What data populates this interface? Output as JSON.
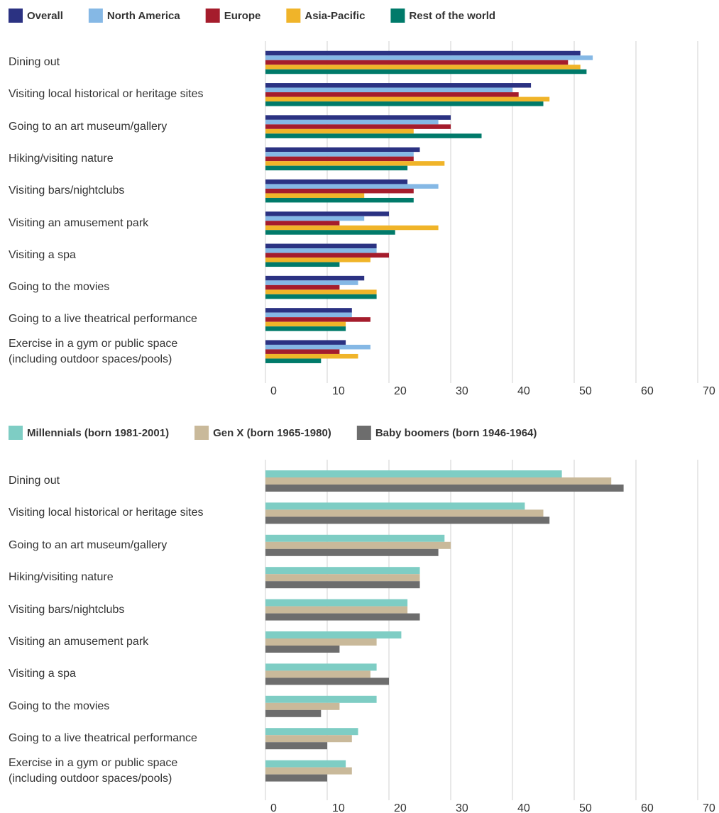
{
  "chart_data": [
    {
      "type": "bar",
      "orientation": "horizontal",
      "categories": [
        "Dining out",
        "Visiting local historical or heritage sites",
        "Going to an art museum/gallery",
        "Hiking/visiting nature",
        "Visiting bars/nightclubs",
        "Visiting an amusement park",
        "Visiting a spa",
        "Going to the movies",
        "Going to a live theatrical performance",
        "Exercise in a gym or public space\n(including outdoor spaces/pools)"
      ],
      "series": [
        {
          "name": "Overall",
          "color": "#2b3282",
          "values": [
            51,
            43,
            30,
            25,
            23,
            20,
            18,
            16,
            14,
            13
          ]
        },
        {
          "name": "North America",
          "color": "#85b8e5",
          "values": [
            53,
            40,
            28,
            24,
            28,
            16,
            18,
            15,
            14,
            17
          ]
        },
        {
          "name": "Europe",
          "color": "#a51c2c",
          "values": [
            49,
            41,
            30,
            24,
            24,
            12,
            20,
            12,
            17,
            12
          ]
        },
        {
          "name": "Asia-Pacific",
          "color": "#f0b429",
          "values": [
            51,
            46,
            24,
            29,
            16,
            28,
            17,
            18,
            13,
            15
          ]
        },
        {
          "name": "Rest of the world",
          "color": "#007a6a",
          "values": [
            52,
            45,
            35,
            23,
            24,
            21,
            12,
            18,
            13,
            9
          ]
        }
      ],
      "xlim": [
        0,
        70
      ],
      "xticks": [
        0,
        10,
        20,
        30,
        40,
        50,
        60,
        70
      ],
      "grid": true,
      "legend": "top"
    },
    {
      "type": "bar",
      "orientation": "horizontal",
      "categories": [
        "Dining out",
        "Visiting local historical or heritage sites",
        "Going to an art museum/gallery",
        "Hiking/visiting nature",
        "Visiting bars/nightclubs",
        "Visiting an amusement park",
        "Visiting a spa",
        "Going to the movies",
        "Going to a live theatrical performance",
        "Exercise in a gym or public space\n(including outdoor spaces/pools)"
      ],
      "series": [
        {
          "name": "Millennials (born 1981-2001)",
          "color": "#7ecdc4",
          "values": [
            48,
            42,
            29,
            25,
            23,
            22,
            18,
            18,
            15,
            13
          ]
        },
        {
          "name": "Gen X (born 1965-1980)",
          "color": "#c9b99a",
          "values": [
            56,
            45,
            30,
            25,
            23,
            18,
            17,
            12,
            14,
            14
          ]
        },
        {
          "name": "Baby boomers (born 1946-1964)",
          "color": "#6d6d6d",
          "values": [
            58,
            46,
            28,
            25,
            25,
            12,
            20,
            9,
            10,
            10
          ]
        }
      ],
      "xlim": [
        0,
        70
      ],
      "xticks": [
        0,
        10,
        20,
        30,
        40,
        50,
        60,
        70
      ],
      "grid": true,
      "legend": "top"
    }
  ]
}
